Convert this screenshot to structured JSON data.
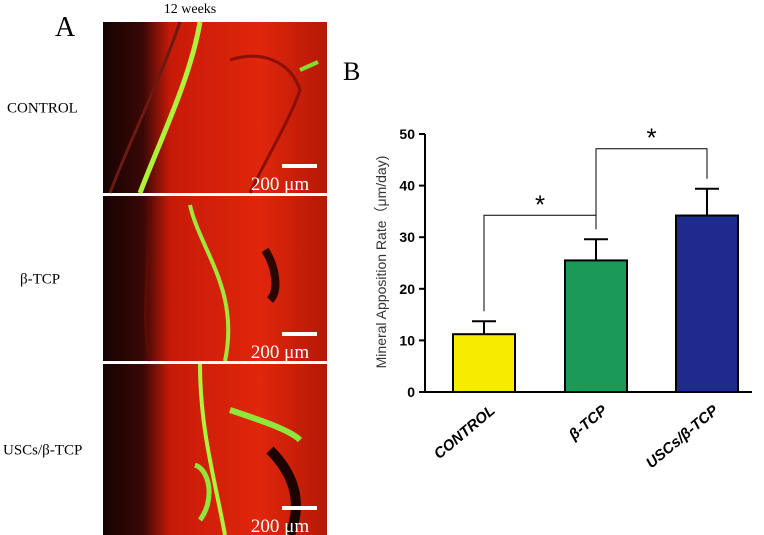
{
  "panel_a": {
    "label": "A",
    "title": "12 weeks",
    "rows": [
      {
        "label": "CONTROL",
        "scale_bar": "200 μm"
      },
      {
        "label": "β-TCP",
        "scale_bar": "200 μm"
      },
      {
        "label": "USCs/β-TCP",
        "scale_bar": "200 μm"
      }
    ]
  },
  "chart_data": {
    "type": "bar",
    "panel_label": "B",
    "y_label": "Mineral Apposition Rate（μm/day)",
    "categories": [
      "CONTROL",
      "β-TCP",
      "USCs/β-TCP"
    ],
    "values": [
      11.2,
      25.5,
      34.2
    ],
    "errors": [
      2.5,
      4.1,
      5.2
    ],
    "colors": [
      "#f7ec00",
      "#1a9a58",
      "#1f2a8e"
    ],
    "ylim": [
      0,
      50
    ],
    "yticks": [
      0,
      10,
      20,
      30,
      40,
      50
    ],
    "significance": [
      {
        "pair": [
          0,
          1
        ],
        "label": "*"
      },
      {
        "pair": [
          1,
          2
        ],
        "label": "*"
      }
    ]
  }
}
